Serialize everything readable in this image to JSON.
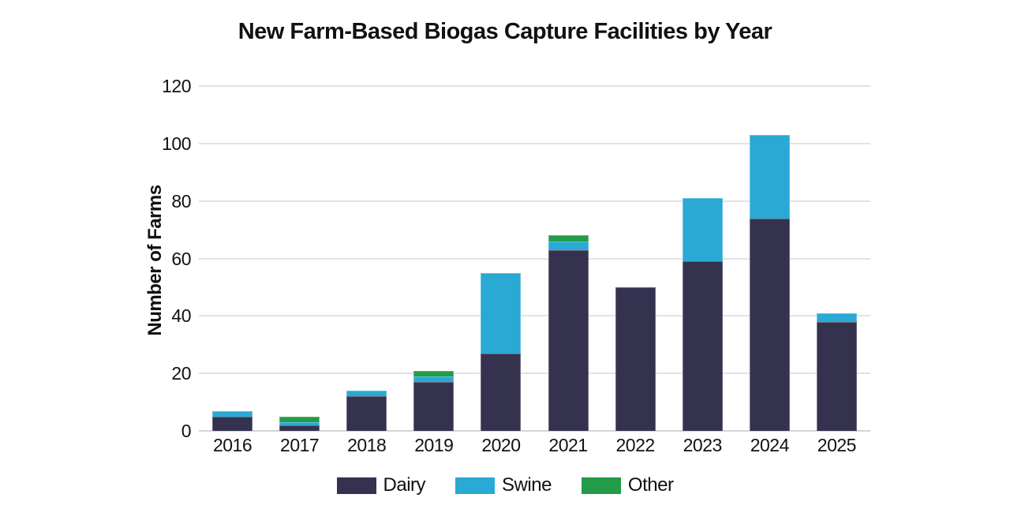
{
  "chart_data": {
    "type": "bar",
    "stacked": true,
    "title": "New Farm-Based Biogas Capture Facilities by Year",
    "ylabel": "Number of Farms",
    "xlabel": "",
    "categories": [
      "2016",
      "2017",
      "2018",
      "2019",
      "2020",
      "2021",
      "2022",
      "2023",
      "2024",
      "2025"
    ],
    "series": [
      {
        "name": "Dairy",
        "color": "#353250",
        "values": [
          5,
          2,
          12,
          17,
          27,
          63,
          50,
          59,
          74,
          38
        ]
      },
      {
        "name": "Swine",
        "color": "#29A9D4",
        "values": [
          2,
          1,
          2,
          2,
          28,
          3,
          0,
          22,
          29,
          3
        ]
      },
      {
        "name": "Other",
        "color": "#249B48",
        "values": [
          0,
          2,
          0,
          2,
          0,
          2,
          0,
          0,
          0,
          0
        ]
      }
    ],
    "ylim": [
      0,
      120
    ],
    "yticks": [
      0,
      20,
      40,
      60,
      80,
      100,
      120
    ],
    "grid": true,
    "legend_position": "bottom"
  },
  "colors": {
    "text": "#111111",
    "gridline": "#e2e2e7",
    "axis_line": "#d4d4d8"
  }
}
